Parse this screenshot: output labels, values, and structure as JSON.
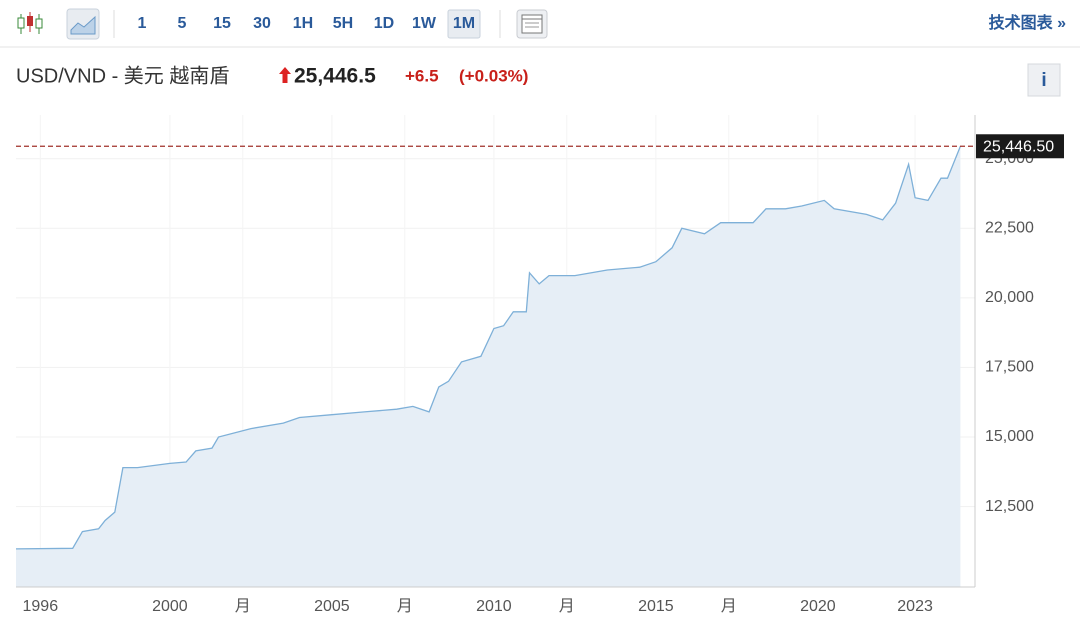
{
  "toolbar": {
    "intervals": [
      "1",
      "5",
      "15",
      "30",
      "1H",
      "5H",
      "1D",
      "1W",
      "1M"
    ],
    "active_index": 8,
    "link": "技术图表 »"
  },
  "header": {
    "pair": "USD/VND - 美元 越南盾",
    "price": "25,446.5",
    "change": "+6.5",
    "change_pct": "(+0.03%)",
    "info": "i"
  },
  "chart_data": {
    "type": "area",
    "x": [
      1995.25,
      1997.0,
      1997.3,
      1997.8,
      1998.0,
      1998.3,
      1998.55,
      1999.0,
      2000.0,
      2000.5,
      2000.8,
      2001.3,
      2001.5,
      2002.5,
      2003.5,
      2004.0,
      2005.0,
      2006.0,
      2007.0,
      2007.5,
      2008.0,
      2008.3,
      2008.6,
      2009.0,
      2009.6,
      2010.0,
      2010.3,
      2010.6,
      2011.0,
      2011.1,
      2011.4,
      2011.7,
      2012.5,
      2013.5,
      2014.5,
      2015.0,
      2015.5,
      2015.8,
      2016.5,
      2017.0,
      2018.0,
      2018.4,
      2019.0,
      2019.5,
      2020.2,
      2020.5,
      2021.5,
      2022.0,
      2022.4,
      2022.8,
      2023.0,
      2023.4,
      2023.8,
      2024.0,
      2024.4
    ],
    "values": [
      10980,
      11000,
      11600,
      11700,
      12000,
      12300,
      13900,
      13900,
      14050,
      14100,
      14500,
      14600,
      15000,
      15300,
      15500,
      15700,
      15800,
      15900,
      16000,
      16100,
      15900,
      16800,
      17000,
      17700,
      17900,
      18900,
      19000,
      19500,
      19500,
      20900,
      20500,
      20800,
      20800,
      21000,
      21100,
      21300,
      21800,
      22500,
      22300,
      22700,
      22700,
      23200,
      23200,
      23300,
      23500,
      23200,
      23000,
      22800,
      23400,
      24800,
      23600,
      23500,
      24300,
      24300,
      25446.5
    ],
    "color": "#7eb0d8",
    "fill": "#e6eef6",
    "xlim": [
      1995.25,
      2024.85
    ],
    "ylim": [
      9610,
      26570
    ],
    "xticks": [
      1996,
      2000,
      {
        "value": 2002.25,
        "label": "月"
      },
      2005,
      {
        "value": 2007.25,
        "label": "月"
      },
      2010,
      {
        "value": 2012.25,
        "label": "月"
      },
      2015,
      {
        "value": 2017.25,
        "label": "月"
      },
      2020,
      2023
    ],
    "yticks": [
      {
        "value": 12500,
        "label": "12,500"
      },
      {
        "value": 15000,
        "label": "15,000"
      },
      {
        "value": 17500,
        "label": "17,500"
      },
      {
        "value": 20000,
        "label": "20,000"
      },
      {
        "value": 22500,
        "label": "22,500"
      },
      {
        "value": 25000,
        "label": "25,000"
      }
    ],
    "grid": true,
    "last_price": {
      "value": 25446.5,
      "label": "25,446.50"
    }
  }
}
